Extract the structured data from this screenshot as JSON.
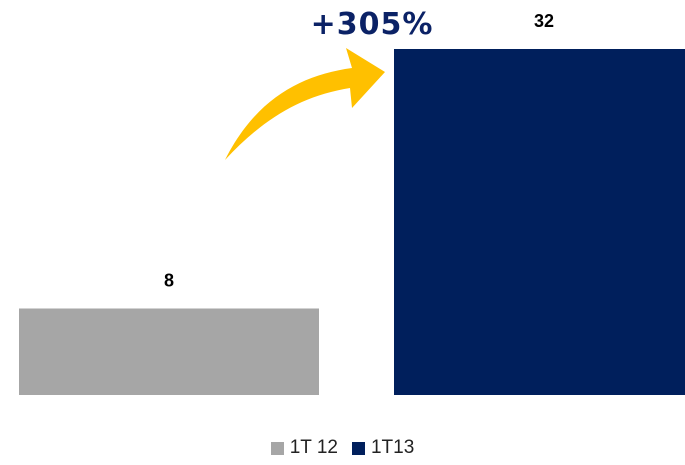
{
  "chart_data": {
    "type": "bar",
    "categories": [
      "1T 12",
      "1T13"
    ],
    "values": [
      8,
      32
    ],
    "value_labels": [
      "8",
      "32"
    ],
    "colors": [
      "#a6a6a6",
      "#001f5c"
    ],
    "ylim": [
      0,
      32
    ],
    "grid": false,
    "legend": {
      "position": "bottom",
      "entries": [
        "1T 12",
        "1T13"
      ]
    },
    "annotations": [
      {
        "text": "+305%",
        "type": "growth-arrow",
        "color": "#ffc000",
        "text_color": "#0b2266"
      }
    ],
    "title": "",
    "xlabel": "",
    "ylabel": ""
  }
}
